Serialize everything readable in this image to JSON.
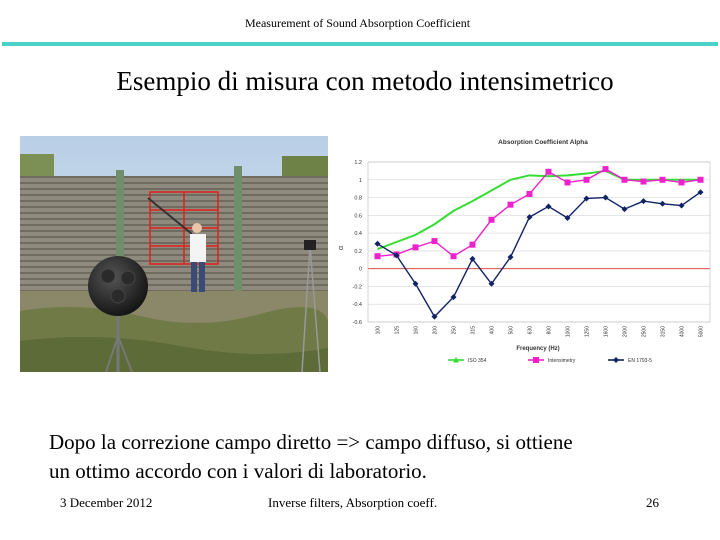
{
  "header": {
    "text": "Measurement of Sound Absorption Coefficient"
  },
  "title": "Esempio di misura con metodo intensimetrico",
  "body_text": {
    "line1": "Dopo la correzione campo diretto => campo diffuso, si ottiene",
    "line2": "un ottimo accordo con i valori di laboratorio."
  },
  "footer": {
    "date": "3 December 2012",
    "center": "Inverse filters, Absorption coeff.",
    "page": "26"
  },
  "colors": {
    "header_rule": "#4ad4c8",
    "iso": "#33dd33",
    "intensimetry": "#ee22cc",
    "en": "#112266",
    "zero_line": "#dd3333"
  },
  "chart_data": {
    "type": "line",
    "title": "Absorption Coefficient Alpha",
    "xlabel": "Frequency (Hz)",
    "ylabel": "α",
    "categories": [
      "100",
      "125",
      "160",
      "200",
      "250",
      "315",
      "400",
      "500",
      "630",
      "800",
      "1000",
      "1250",
      "1600",
      "2000",
      "2500",
      "3150",
      "4000",
      "5000"
    ],
    "ylim": [
      -0.6,
      1.2
    ],
    "yticks": [
      "1.2",
      "1",
      "0.8",
      "0.6",
      "0.4",
      "0.2",
      "0",
      "-0.2",
      "-0.4",
      "-0.6"
    ],
    "grid": true,
    "legend": "bottom",
    "series": [
      {
        "name": "ISO 354",
        "values": [
          0.22,
          0.3,
          0.38,
          0.5,
          0.65,
          0.76,
          0.88,
          1.0,
          1.05,
          1.04,
          1.05,
          1.07,
          1.1,
          1.0,
          1.0,
          1.0,
          1.0,
          1.0
        ]
      },
      {
        "name": "Intensimetry",
        "values": [
          0.14,
          0.16,
          0.24,
          0.31,
          0.14,
          0.27,
          0.55,
          0.72,
          0.84,
          1.09,
          0.97,
          1.0,
          1.12,
          1.0,
          0.98,
          1.0,
          0.97,
          1.0
        ]
      },
      {
        "name": "EN 1793-5",
        "values": [
          0.28,
          0.15,
          -0.17,
          -0.54,
          -0.32,
          0.11,
          -0.17,
          0.13,
          0.58,
          0.7,
          0.57,
          0.79,
          0.8,
          0.67,
          0.76,
          0.73,
          0.71,
          0.86
        ]
      }
    ]
  }
}
